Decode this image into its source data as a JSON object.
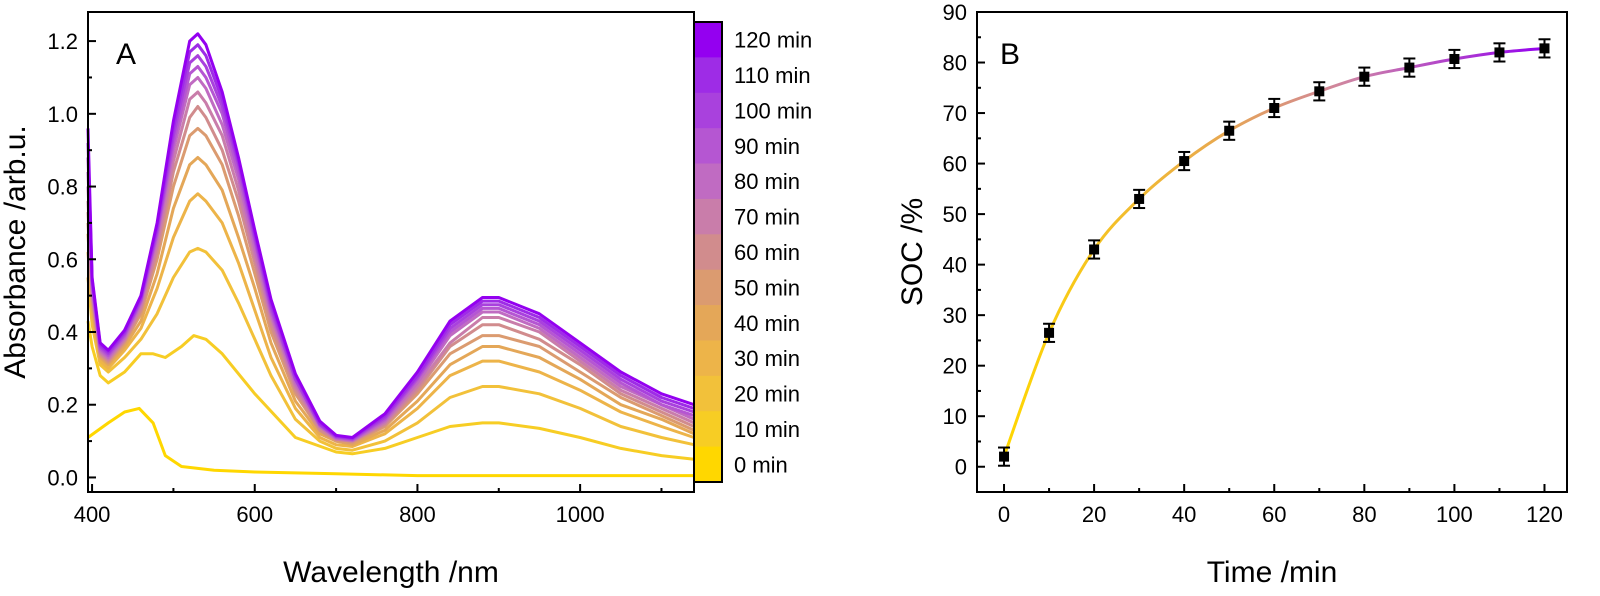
{
  "panelA": {
    "label": "A",
    "xlabel": "Wavelength /nm",
    "ylabel": "Absorbance /arb.u.",
    "xlim": [
      395,
      1140
    ],
    "ylim": [
      -0.04,
      1.28
    ],
    "xticks": [
      "400",
      "600",
      "800",
      "1000"
    ],
    "yticks": [
      "0.0",
      "0.2",
      "0.4",
      "0.6",
      "0.8",
      "1.0",
      "1.2"
    ],
    "legend": [
      "120 min",
      "110 min",
      "100 min",
      "90 min",
      "80 min",
      "70 min",
      "60 min",
      "50 min",
      "40 min",
      "30 min",
      "20 min",
      "10 min",
      "0 min"
    ]
  },
  "panelB": {
    "label": "B",
    "xlabel": "Time /min",
    "ylabel": "SOC /%",
    "xticks": [
      "0",
      "20",
      "40",
      "60",
      "80",
      "100",
      "120"
    ],
    "yticks": [
      "0",
      "10",
      "20",
      "30",
      "40",
      "50",
      "60",
      "70",
      "80",
      "90"
    ]
  },
  "chart_data": [
    {
      "type": "line",
      "title": "",
      "xlabel": "Wavelength /nm",
      "ylabel": "Absorbance /arb.u.",
      "xlim": [
        395,
        1140
      ],
      "ylim": [
        -0.04,
        1.28
      ],
      "colormap": [
        "#FFD700",
        "#9400F0"
      ],
      "series": [
        {
          "name": "0 min",
          "color": "#FFD700",
          "x": [
            395,
            420,
            440,
            458,
            475,
            490,
            510,
            550,
            600,
            700,
            800,
            900,
            1000,
            1140
          ],
          "values": [
            0.11,
            0.15,
            0.18,
            0.19,
            0.15,
            0.06,
            0.03,
            0.02,
            0.015,
            0.01,
            0.005,
            0.005,
            0.005,
            0.005
          ]
        },
        {
          "name": "10 min",
          "color": "#F7CD24",
          "x": [
            395,
            400,
            410,
            420,
            440,
            460,
            475,
            490,
            510,
            525,
            540,
            560,
            600,
            650,
            700,
            720,
            760,
            800,
            840,
            880,
            900,
            950,
            1000,
            1050,
            1100,
            1140
          ],
          "values": [
            0.43,
            0.36,
            0.28,
            0.26,
            0.29,
            0.34,
            0.34,
            0.33,
            0.36,
            0.39,
            0.38,
            0.34,
            0.23,
            0.11,
            0.07,
            0.065,
            0.08,
            0.11,
            0.14,
            0.15,
            0.15,
            0.135,
            0.11,
            0.08,
            0.06,
            0.05
          ]
        },
        {
          "name": "20 min",
          "color": "#F2C13A",
          "x": [
            395,
            400,
            410,
            420,
            440,
            460,
            480,
            500,
            520,
            530,
            540,
            560,
            580,
            600,
            620,
            650,
            680,
            700,
            720,
            760,
            800,
            840,
            880,
            900,
            950,
            1000,
            1050,
            1100,
            1140
          ],
          "values": [
            0.55,
            0.42,
            0.31,
            0.29,
            0.33,
            0.38,
            0.45,
            0.55,
            0.62,
            0.63,
            0.62,
            0.57,
            0.48,
            0.38,
            0.28,
            0.16,
            0.1,
            0.08,
            0.075,
            0.1,
            0.15,
            0.22,
            0.25,
            0.25,
            0.23,
            0.19,
            0.14,
            0.11,
            0.09
          ]
        },
        {
          "name": "30 min",
          "color": "#EDB449",
          "x": [
            395,
            400,
            410,
            420,
            440,
            460,
            480,
            500,
            520,
            530,
            540,
            560,
            580,
            600,
            620,
            650,
            680,
            700,
            720,
            760,
            800,
            840,
            880,
            900,
            950,
            1000,
            1050,
            1100,
            1140
          ],
          "values": [
            0.62,
            0.45,
            0.32,
            0.3,
            0.35,
            0.41,
            0.52,
            0.66,
            0.76,
            0.78,
            0.76,
            0.7,
            0.59,
            0.46,
            0.33,
            0.19,
            0.11,
            0.09,
            0.085,
            0.12,
            0.19,
            0.28,
            0.32,
            0.32,
            0.29,
            0.24,
            0.18,
            0.14,
            0.11
          ]
        },
        {
          "name": "40 min",
          "color": "#E4A758",
          "x": [
            395,
            400,
            410,
            420,
            440,
            460,
            480,
            500,
            520,
            530,
            540,
            560,
            580,
            600,
            620,
            650,
            680,
            700,
            720,
            760,
            800,
            840,
            880,
            900,
            950,
            1000,
            1050,
            1100,
            1140
          ],
          "values": [
            0.67,
            0.47,
            0.33,
            0.31,
            0.36,
            0.43,
            0.56,
            0.74,
            0.86,
            0.88,
            0.86,
            0.79,
            0.66,
            0.52,
            0.37,
            0.21,
            0.12,
            0.1,
            0.09,
            0.13,
            0.21,
            0.31,
            0.36,
            0.36,
            0.33,
            0.27,
            0.2,
            0.16,
            0.12
          ]
        },
        {
          "name": "50 min",
          "color": "#DB9B70",
          "x": [
            395,
            400,
            410,
            420,
            440,
            460,
            480,
            500,
            520,
            530,
            540,
            560,
            580,
            600,
            620,
            650,
            680,
            700,
            720,
            760,
            800,
            840,
            880,
            900,
            950,
            1000,
            1050,
            1100,
            1140
          ],
          "values": [
            0.7,
            0.49,
            0.335,
            0.315,
            0.37,
            0.45,
            0.6,
            0.8,
            0.94,
            0.96,
            0.94,
            0.86,
            0.72,
            0.56,
            0.4,
            0.23,
            0.13,
            0.1,
            0.095,
            0.14,
            0.23,
            0.34,
            0.39,
            0.39,
            0.36,
            0.29,
            0.22,
            0.17,
            0.13
          ]
        },
        {
          "name": "60 min",
          "color": "#D18C8D",
          "x": [
            395,
            400,
            410,
            420,
            440,
            460,
            480,
            500,
            520,
            530,
            540,
            560,
            580,
            600,
            620,
            650,
            680,
            700,
            720,
            760,
            800,
            840,
            880,
            900,
            950,
            1000,
            1050,
            1100,
            1140
          ],
          "values": [
            0.73,
            0.5,
            0.34,
            0.32,
            0.375,
            0.46,
            0.62,
            0.84,
            0.99,
            1.02,
            0.99,
            0.9,
            0.76,
            0.59,
            0.42,
            0.24,
            0.13,
            0.105,
            0.1,
            0.145,
            0.24,
            0.36,
            0.42,
            0.42,
            0.38,
            0.31,
            0.23,
            0.18,
            0.14
          ]
        },
        {
          "name": "70 min",
          "color": "#C97DAA",
          "x": [
            395,
            400,
            410,
            420,
            440,
            460,
            480,
            500,
            520,
            530,
            540,
            560,
            580,
            600,
            620,
            650,
            680,
            700,
            720,
            760,
            800,
            840,
            880,
            900,
            950,
            1000,
            1050,
            1100,
            1140
          ],
          "values": [
            0.76,
            0.51,
            0.345,
            0.325,
            0.38,
            0.47,
            0.64,
            0.87,
            1.04,
            1.06,
            1.03,
            0.94,
            0.79,
            0.61,
            0.44,
            0.25,
            0.14,
            0.105,
            0.1,
            0.15,
            0.25,
            0.37,
            0.44,
            0.44,
            0.4,
            0.32,
            0.24,
            0.19,
            0.15
          ]
        },
        {
          "name": "80 min",
          "color": "#C06BC2",
          "x": [
            395,
            400,
            410,
            420,
            440,
            460,
            480,
            500,
            520,
            530,
            540,
            560,
            580,
            600,
            620,
            650,
            680,
            700,
            720,
            760,
            800,
            840,
            880,
            900,
            950,
            1000,
            1050,
            1100,
            1140
          ],
          "values": [
            0.8,
            0.52,
            0.35,
            0.33,
            0.385,
            0.48,
            0.66,
            0.9,
            1.08,
            1.1,
            1.07,
            0.97,
            0.82,
            0.63,
            0.45,
            0.26,
            0.14,
            0.108,
            0.102,
            0.155,
            0.26,
            0.39,
            0.455,
            0.455,
            0.41,
            0.33,
            0.25,
            0.2,
            0.16
          ]
        },
        {
          "name": "90 min",
          "color": "#B556D2",
          "x": [
            395,
            400,
            410,
            420,
            440,
            460,
            480,
            500,
            520,
            530,
            540,
            560,
            580,
            600,
            620,
            650,
            680,
            700,
            720,
            760,
            800,
            840,
            880,
            900,
            950,
            1000,
            1050,
            1100,
            1140
          ],
          "values": [
            0.84,
            0.53,
            0.355,
            0.335,
            0.39,
            0.485,
            0.67,
            0.92,
            1.11,
            1.13,
            1.1,
            1.0,
            0.84,
            0.65,
            0.46,
            0.27,
            0.145,
            0.11,
            0.104,
            0.16,
            0.27,
            0.4,
            0.465,
            0.465,
            0.42,
            0.34,
            0.26,
            0.2,
            0.17
          ]
        },
        {
          "name": "100 min",
          "color": "#A941DD",
          "x": [
            395,
            400,
            410,
            420,
            440,
            460,
            480,
            500,
            520,
            530,
            540,
            560,
            580,
            600,
            620,
            650,
            680,
            700,
            720,
            760,
            800,
            840,
            880,
            900,
            950,
            1000,
            1050,
            1100,
            1140
          ],
          "values": [
            0.88,
            0.54,
            0.36,
            0.34,
            0.395,
            0.49,
            0.68,
            0.94,
            1.14,
            1.16,
            1.13,
            1.02,
            0.86,
            0.66,
            0.47,
            0.27,
            0.145,
            0.112,
            0.106,
            0.165,
            0.275,
            0.41,
            0.475,
            0.475,
            0.43,
            0.35,
            0.27,
            0.21,
            0.18
          ]
        },
        {
          "name": "110 min",
          "color": "#9E2CE6",
          "x": [
            395,
            400,
            410,
            420,
            440,
            460,
            480,
            500,
            520,
            530,
            540,
            560,
            580,
            600,
            620,
            650,
            680,
            700,
            720,
            760,
            800,
            840,
            880,
            900,
            950,
            1000,
            1050,
            1100,
            1140
          ],
          "values": [
            0.92,
            0.545,
            0.365,
            0.345,
            0.4,
            0.495,
            0.69,
            0.96,
            1.17,
            1.19,
            1.16,
            1.04,
            0.87,
            0.67,
            0.48,
            0.28,
            0.15,
            0.114,
            0.108,
            0.17,
            0.28,
            0.42,
            0.485,
            0.485,
            0.44,
            0.36,
            0.28,
            0.22,
            0.19
          ]
        },
        {
          "name": "120 min",
          "color": "#9400F0",
          "x": [
            395,
            400,
            410,
            420,
            440,
            460,
            480,
            500,
            520,
            530,
            540,
            560,
            580,
            600,
            620,
            650,
            680,
            700,
            720,
            760,
            800,
            840,
            880,
            900,
            950,
            1000,
            1050,
            1100,
            1140
          ],
          "values": [
            0.96,
            0.55,
            0.37,
            0.35,
            0.405,
            0.5,
            0.7,
            0.98,
            1.2,
            1.22,
            1.19,
            1.06,
            0.88,
            0.68,
            0.49,
            0.285,
            0.155,
            0.116,
            0.11,
            0.175,
            0.29,
            0.43,
            0.495,
            0.495,
            0.45,
            0.37,
            0.29,
            0.23,
            0.2
          ]
        }
      ]
    },
    {
      "type": "scatter",
      "title": "",
      "xlabel": "Time /min",
      "ylabel": "SOC /%",
      "xlim": [
        -6,
        125
      ],
      "ylim": [
        -5,
        90
      ],
      "x": [
        0,
        10,
        20,
        30,
        40,
        50,
        60,
        70,
        80,
        90,
        100,
        110,
        120
      ],
      "values": [
        2,
        26.5,
        43,
        53,
        60.5,
        66.5,
        71,
        74.3,
        77.2,
        79,
        80.7,
        82,
        82.8
      ],
      "errors": [
        1.8,
        1.8,
        1.8,
        1.8,
        1.8,
        1.8,
        1.8,
        1.8,
        1.8,
        1.8,
        1.8,
        1.8,
        1.8
      ],
      "fit_line": true,
      "fit_colors": [
        "#FFD700",
        "#9400F0"
      ]
    }
  ]
}
